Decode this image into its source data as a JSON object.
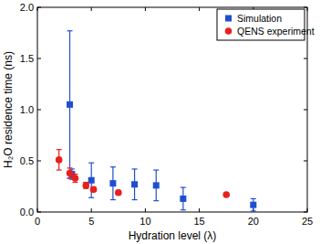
{
  "chart_data": {
    "type": "scatter",
    "x_label": "Hydration level (λ)",
    "y_label": "H₂O residence time (ns)",
    "xlim": [
      0,
      25
    ],
    "xticks": [
      0,
      5,
      10,
      15,
      20,
      25
    ],
    "ylim": [
      0,
      2
    ],
    "yticks": [
      {
        "value": 0,
        "label": "0.0"
      },
      {
        "value": 0.5,
        "label": "0.5"
      },
      {
        "value": 1,
        "label": "1.0"
      },
      {
        "value": 1.5,
        "label": "1.5"
      },
      {
        "value": 2,
        "label": "2.0"
      }
    ],
    "legend": "upper right",
    "series": [
      {
        "name": "Simulation",
        "color": "#1f4fd0",
        "marker": "square",
        "x": [
          3,
          3.2,
          5,
          7,
          9,
          11,
          13.5,
          20
        ],
        "values": [
          1.05,
          0.37,
          0.31,
          0.28,
          0.27,
          0.26,
          0.13,
          0.07
        ],
        "errors": [
          0.72,
          0.05,
          0.17,
          0.16,
          0.15,
          0.15,
          0.11,
          0.06
        ]
      },
      {
        "name": "QENS experiment",
        "color": "#e8201c",
        "marker": "circle",
        "x": [
          2,
          3,
          3.5,
          4.5,
          5.2,
          7.5,
          17.5
        ],
        "values": [
          0.51,
          0.38,
          0.33,
          0.26,
          0.22,
          0.19,
          0.17
        ],
        "errors": [
          0.1,
          0.05,
          0.04,
          0.03,
          0.02,
          0.02,
          0.01
        ]
      }
    ]
  }
}
